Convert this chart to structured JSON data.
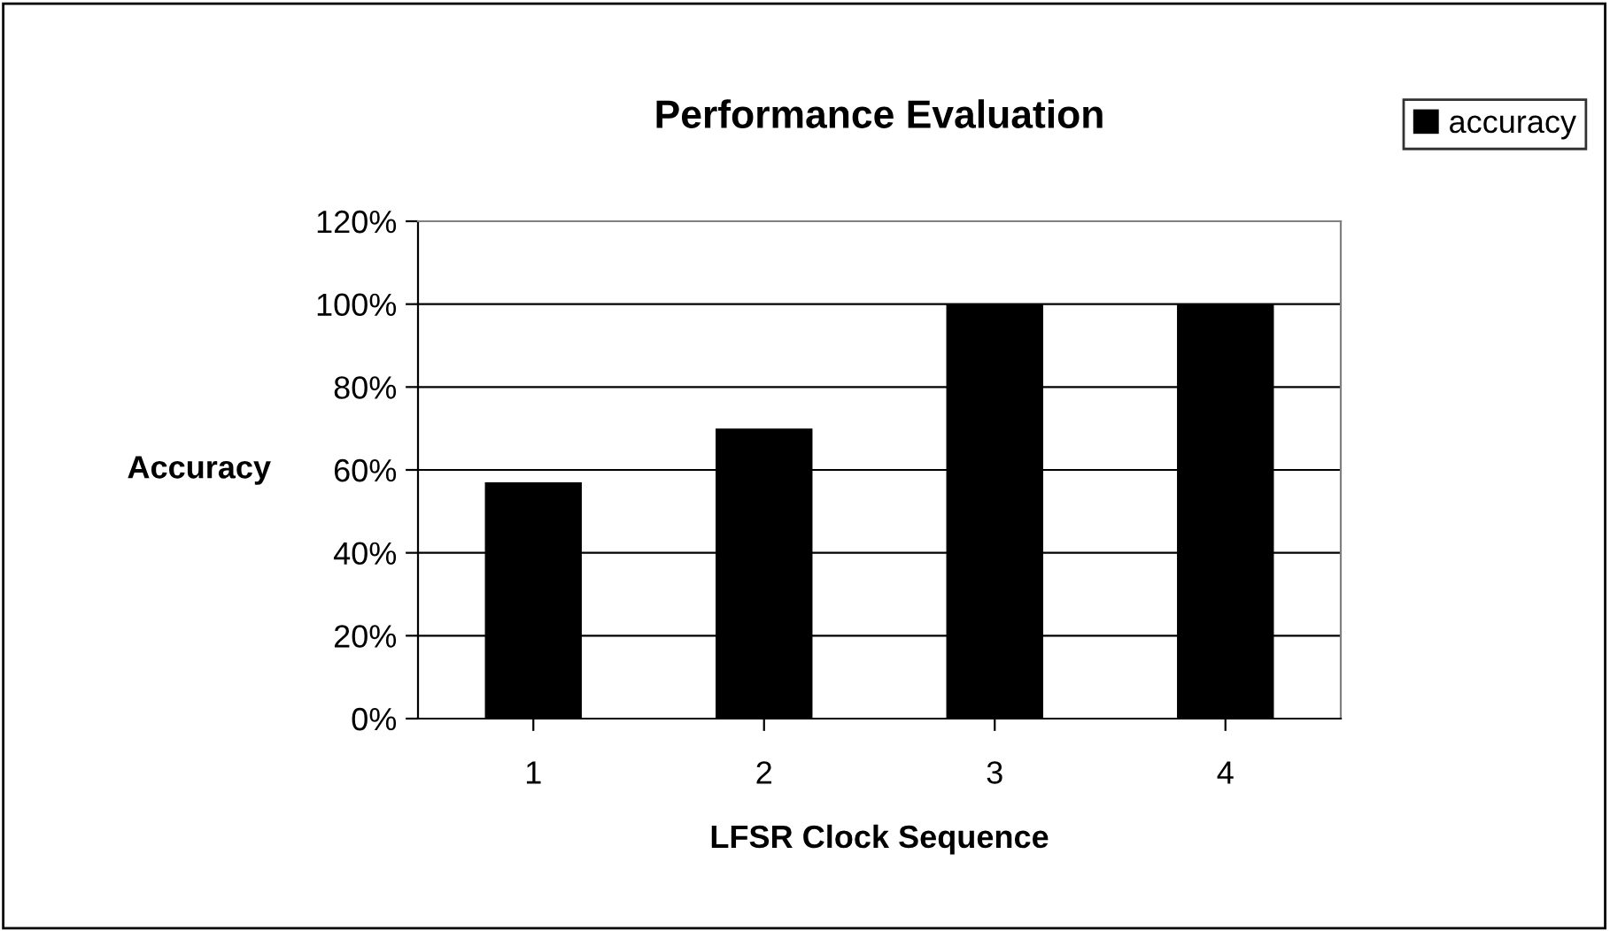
{
  "chart_data": {
    "type": "bar",
    "title": "Performance Evaluation",
    "xlabel": "LFSR Clock Sequence",
    "ylabel": "Accuracy",
    "categories": [
      "1",
      "2",
      "3",
      "4"
    ],
    "series": [
      {
        "name": "accuracy",
        "color": "#000000",
        "values": [
          57,
          70,
          100,
          100
        ]
      }
    ],
    "ylim": [
      0,
      120
    ],
    "yticks": [
      {
        "value": 0,
        "label": "0%"
      },
      {
        "value": 20,
        "label": "20%"
      },
      {
        "value": 40,
        "label": "40%"
      },
      {
        "value": 60,
        "label": "60%"
      },
      {
        "value": 80,
        "label": "80%"
      },
      {
        "value": 100,
        "label": "100%"
      },
      {
        "value": 120,
        "label": "120%"
      }
    ],
    "grid": "y",
    "legend": "top right"
  }
}
